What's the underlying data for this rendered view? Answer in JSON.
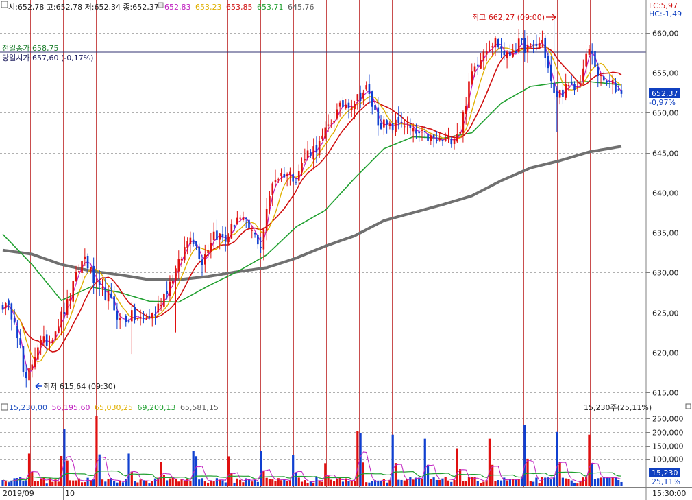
{
  "header": {
    "ohlc": "시:652,78 고:652,78 저:652,34 종:652,37",
    "ma_values": [
      {
        "text": "652,83",
        "color": "#c020c0"
      },
      {
        "text": "653,23",
        "color": "#e0b000"
      },
      {
        "text": "653,85",
        "color": "#d01010"
      },
      {
        "text": "653,71",
        "color": "#20a030"
      },
      {
        "text": "645,76",
        "color": "#606060"
      }
    ],
    "lc": "LC:5,97",
    "hc": "HC:-1,49"
  },
  "annotations": {
    "high": "최고 662,27 (09:00)",
    "low": "최저 615,64 (09:30)",
    "prev_close": "전일종가 658,75",
    "today_open": "당일시가 657,60 (-0,17%)",
    "last_price": "652,37",
    "last_change": "-0,97%"
  },
  "volume_header": {
    "values": [
      {
        "text": "15,230,00",
        "color": "#2050c0"
      },
      {
        "text": "56,195,60",
        "color": "#c020c0"
      },
      {
        "text": "65,030,25",
        "color": "#e0b000"
      },
      {
        "text": "69,200,13",
        "color": "#20a030"
      },
      {
        "text": "65,581,15",
        "color": "#606060"
      }
    ],
    "right": "15,230주(25,11%)",
    "last_volume": "15,230",
    "last_pct": "25,11%"
  },
  "xaxis": {
    "labels": [
      "2019/09",
      "10"
    ],
    "right": "15:30:00"
  },
  "colors": {
    "up": "#e01010",
    "down": "#1040d0",
    "ma5": "#c020c0",
    "ma10": "#e0b000",
    "ma20": "#d01010",
    "ma60": "#20a030",
    "ma120": "#707070",
    "grid_v": "#c03030"
  },
  "chart_data": {
    "type": "candlestick",
    "price_axis": {
      "ticks": [
        "660,00",
        "655,00",
        "650,00",
        "645,00",
        "640,00",
        "635,00",
        "630,00",
        "625,00",
        "620,00",
        "615,00"
      ],
      "range": [
        614,
        664
      ]
    },
    "volume_axis": {
      "ticks": [
        "250,000",
        "200,000",
        "150,000",
        "100,000",
        "50,000"
      ],
      "range": [
        0,
        270000
      ]
    },
    "prev_close": 658.75,
    "today_open": 657.6,
    "high": 662.27,
    "low": 615.64,
    "last": 652.37,
    "price_anchors": [
      [
        0,
        626
      ],
      [
        4,
        624.5
      ],
      [
        8,
        616.5
      ],
      [
        12,
        621
      ],
      [
        16,
        621.5
      ],
      [
        18,
        623
      ],
      [
        22,
        626
      ],
      [
        26,
        630.5
      ],
      [
        28,
        632
      ],
      [
        32,
        628
      ],
      [
        36,
        627
      ],
      [
        40,
        624
      ],
      [
        44,
        624.5
      ],
      [
        48,
        624
      ],
      [
        52,
        625
      ],
      [
        56,
        628
      ],
      [
        60,
        631
      ],
      [
        64,
        635
      ],
      [
        68,
        631.5
      ],
      [
        72,
        635
      ],
      [
        76,
        634
      ],
      [
        80,
        637
      ],
      [
        84,
        635.5
      ],
      [
        88,
        633.5
      ],
      [
        92,
        641.5
      ],
      [
        96,
        642.5
      ],
      [
        100,
        642
      ],
      [
        104,
        645
      ],
      [
        108,
        646
      ],
      [
        112,
        649
      ],
      [
        116,
        651
      ],
      [
        120,
        651.5
      ],
      [
        124,
        653
      ],
      [
        128,
        649
      ],
      [
        132,
        648
      ],
      [
        136,
        649
      ],
      [
        140,
        647.5
      ],
      [
        144,
        647
      ],
      [
        148,
        646.5
      ],
      [
        152,
        646.5
      ],
      [
        156,
        648
      ],
      [
        160,
        655
      ],
      [
        164,
        658
      ],
      [
        168,
        659
      ],
      [
        172,
        657
      ],
      [
        176,
        658.5
      ],
      [
        180,
        658
      ],
      [
        184,
        659
      ],
      [
        188,
        652
      ],
      [
        192,
        653
      ],
      [
        196,
        653
      ],
      [
        200,
        658
      ],
      [
        204,
        654
      ],
      [
        208,
        653.5
      ],
      [
        211,
        652.4
      ],
      [
        212,
        652.4
      ]
    ],
    "ma120_anchors": [
      [
        0,
        632.8
      ],
      [
        10,
        632.3
      ],
      [
        20,
        631
      ],
      [
        30,
        630.2
      ],
      [
        40,
        629.7
      ],
      [
        50,
        629.1
      ],
      [
        60,
        629.1
      ],
      [
        70,
        629.5
      ],
      [
        80,
        630.1
      ],
      [
        90,
        630.6
      ],
      [
        100,
        631.8
      ],
      [
        110,
        633.3
      ],
      [
        120,
        634.6
      ],
      [
        130,
        636.5
      ],
      [
        140,
        637.5
      ],
      [
        150,
        638.5
      ],
      [
        160,
        639.6
      ],
      [
        170,
        641.5
      ],
      [
        180,
        643.1
      ],
      [
        190,
        644
      ],
      [
        200,
        645.1
      ],
      [
        211,
        645.8
      ]
    ],
    "ma60_anchors": [
      [
        0,
        634.8
      ],
      [
        10,
        631
      ],
      [
        20,
        626.5
      ],
      [
        30,
        628.2
      ],
      [
        40,
        627.5
      ],
      [
        50,
        626.4
      ],
      [
        60,
        626.3
      ],
      [
        70,
        628.3
      ],
      [
        80,
        630.1
      ],
      [
        90,
        632.2
      ],
      [
        100,
        635.7
      ],
      [
        110,
        637.8
      ],
      [
        120,
        641.8
      ],
      [
        130,
        645.5
      ],
      [
        140,
        647
      ],
      [
        150,
        646.8
      ],
      [
        160,
        647.5
      ],
      [
        170,
        651.2
      ],
      [
        180,
        653.3
      ],
      [
        190,
        653.8
      ],
      [
        200,
        653.9
      ],
      [
        211,
        653.5
      ]
    ]
  }
}
